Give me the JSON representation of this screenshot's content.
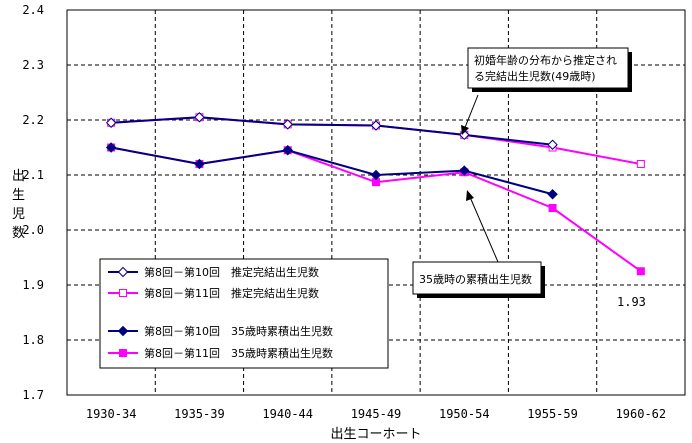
{
  "chart_data": {
    "type": "line",
    "xlabel": "出生コーホート",
    "ylabel": "出生児数",
    "categories": [
      "1930-34",
      "1935-39",
      "1940-44",
      "1945-49",
      "1950-54",
      "1955-59",
      "1960-62"
    ],
    "yticks": [
      "1.7",
      "1.8",
      "1.9",
      "2.0",
      "2.1",
      "2.2",
      "2.3",
      "2.4"
    ],
    "ylim": [
      1.7,
      2.4
    ],
    "grid": true,
    "legend_position": "lower-left",
    "series": [
      {
        "name": "第8回－第10回　推定完結出生児数",
        "color": "#000080",
        "marker": "diamond-open",
        "values": [
          2.195,
          2.205,
          2.192,
          2.19,
          2.173,
          2.155,
          null
        ]
      },
      {
        "name": "第8回－第11回　推定完結出生児数",
        "color": "#ff00ff",
        "marker": "square-open",
        "values": [
          2.195,
          2.205,
          2.192,
          2.19,
          2.173,
          2.15,
          2.12
        ]
      },
      {
        "name": "第8回－第10回　35歳時累積出生児数",
        "color": "#000080",
        "marker": "diamond-filled",
        "values": [
          2.15,
          2.12,
          2.145,
          2.1,
          2.108,
          2.065,
          null
        ]
      },
      {
        "name": "第8回－第11回　35歳時累積出生児数",
        "color": "#ff00ff",
        "marker": "square-filled",
        "values": [
          2.15,
          2.12,
          2.145,
          2.087,
          2.105,
          2.04,
          1.925
        ]
      }
    ],
    "annotations": {
      "callout_top": [
        "初婚年齢の分布から推定され",
        "る完結出生児数(49歳時)"
      ],
      "callout_bottom": "35歳時の累積出生児数",
      "data_label": "1.93"
    }
  }
}
